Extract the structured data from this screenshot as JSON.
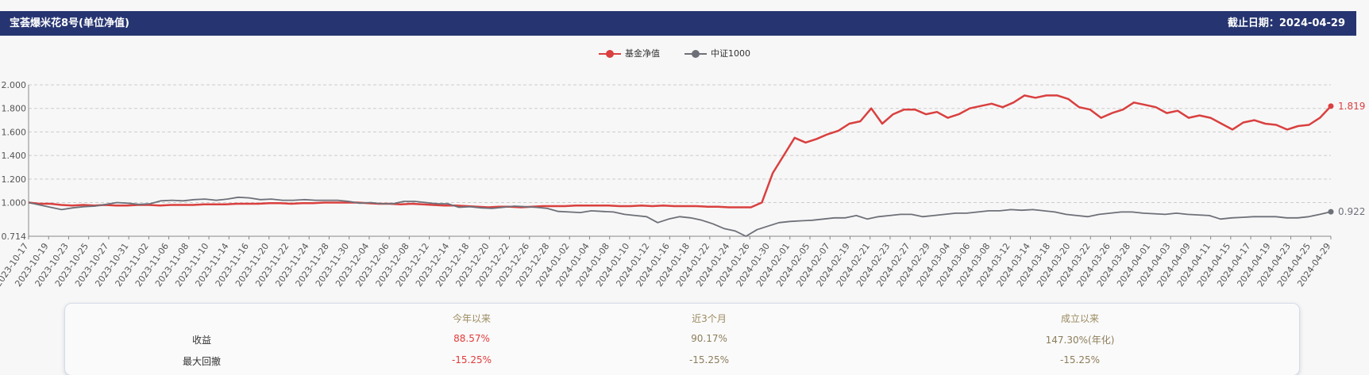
{
  "header": {
    "title": "宝荟爆米花8号(单位净值)",
    "date_label": "截止日期：",
    "date": "2024-04-29"
  },
  "chart_data": {
    "type": "line",
    "legend_position": "top-center",
    "grid": true,
    "ylim": [
      0.714,
      2.0
    ],
    "y_ticks": [
      2.0,
      1.8,
      1.6,
      1.4,
      1.2,
      1.0,
      0.714
    ],
    "y_tick_labels": [
      "2.000",
      "1.800",
      "1.600",
      "1.400",
      "1.200",
      "1.000",
      "0.714"
    ],
    "x_tick_labels": [
      "2023-10-17",
      "2023-10-19",
      "2023-10-23",
      "2023-10-25",
      "2023-10-27",
      "2023-10-31",
      "2023-11-02",
      "2023-11-06",
      "2023-11-08",
      "2023-11-10",
      "2023-11-14",
      "2023-11-16",
      "2023-11-20",
      "2023-11-22",
      "2023-11-24",
      "2023-11-28",
      "2023-11-30",
      "2023-12-04",
      "2023-12-06",
      "2023-12-08",
      "2023-12-12",
      "2023-12-14",
      "2023-12-18",
      "2023-12-20",
      "2023-12-22",
      "2023-12-26",
      "2023-12-28",
      "2024-01-02",
      "2024-01-04",
      "2024-01-08",
      "2024-01-10",
      "2024-01-12",
      "2024-01-16",
      "2024-01-18",
      "2024-01-22",
      "2024-01-24",
      "2024-01-26",
      "2024-01-30",
      "2024-02-01",
      "2024-02-05",
      "2024-02-07",
      "2024-02-19",
      "2024-02-21",
      "2024-02-23",
      "2024-02-27",
      "2024-02-29",
      "2024-03-04",
      "2024-03-06",
      "2024-03-08",
      "2024-03-12",
      "2024-03-14",
      "2024-03-18",
      "2024-03-20",
      "2024-03-22",
      "2024-03-26",
      "2024-03-28",
      "2024-04-01",
      "2024-04-03",
      "2024-04-09",
      "2024-04-11",
      "2024-04-15",
      "2024-04-17",
      "2024-04-19",
      "2024-04-23",
      "2024-04-25",
      "2024-04-29"
    ],
    "series": [
      {
        "name": "基金净值",
        "color": "#d9403f",
        "end_label": "1.819",
        "values": [
          1.0,
          0.99,
          0.99,
          0.98,
          0.975,
          0.98,
          0.975,
          0.98,
          0.975,
          0.975,
          0.98,
          0.98,
          0.975,
          0.98,
          0.98,
          0.98,
          0.985,
          0.985,
          0.985,
          0.99,
          0.99,
          0.99,
          0.995,
          0.995,
          0.99,
          0.995,
          0.995,
          1.0,
          1.0,
          1.0,
          1.0,
          0.995,
          0.99,
          0.99,
          0.985,
          0.99,
          0.985,
          0.98,
          0.975,
          0.975,
          0.97,
          0.965,
          0.96,
          0.965,
          0.965,
          0.96,
          0.965,
          0.97,
          0.97,
          0.97,
          0.975,
          0.975,
          0.975,
          0.975,
          0.97,
          0.97,
          0.975,
          0.97,
          0.975,
          0.97,
          0.97,
          0.97,
          0.965,
          0.965,
          0.96,
          0.96,
          0.96,
          1.0,
          1.25,
          1.4,
          1.55,
          1.51,
          1.54,
          1.58,
          1.61,
          1.67,
          1.69,
          1.8,
          1.67,
          1.75,
          1.79,
          1.79,
          1.75,
          1.77,
          1.72,
          1.75,
          1.8,
          1.82,
          1.84,
          1.81,
          1.85,
          1.91,
          1.89,
          1.91,
          1.91,
          1.88,
          1.81,
          1.79,
          1.72,
          1.76,
          1.79,
          1.85,
          1.83,
          1.81,
          1.76,
          1.78,
          1.72,
          1.74,
          1.72,
          1.67,
          1.62,
          1.68,
          1.7,
          1.67,
          1.66,
          1.62,
          1.65,
          1.66,
          1.72,
          1.819
        ]
      },
      {
        "name": "中证1000",
        "color": "#6e7079",
        "end_label": "0.922",
        "values": [
          1.0,
          0.98,
          0.96,
          0.94,
          0.955,
          0.965,
          0.97,
          0.985,
          1.0,
          0.995,
          0.985,
          0.99,
          1.015,
          1.02,
          1.015,
          1.025,
          1.03,
          1.02,
          1.03,
          1.045,
          1.04,
          1.025,
          1.03,
          1.02,
          1.02,
          1.025,
          1.02,
          1.02,
          1.02,
          1.01,
          0.995,
          1.0,
          0.99,
          0.99,
          1.01,
          1.01,
          1.0,
          0.99,
          0.99,
          0.96,
          0.965,
          0.955,
          0.95,
          0.96,
          0.97,
          0.965,
          0.96,
          0.95,
          0.925,
          0.92,
          0.915,
          0.93,
          0.925,
          0.92,
          0.9,
          0.89,
          0.88,
          0.83,
          0.86,
          0.88,
          0.87,
          0.85,
          0.82,
          0.78,
          0.76,
          0.714,
          0.77,
          0.8,
          0.83,
          0.84,
          0.845,
          0.85,
          0.86,
          0.87,
          0.87,
          0.89,
          0.86,
          0.88,
          0.89,
          0.9,
          0.9,
          0.88,
          0.89,
          0.9,
          0.91,
          0.91,
          0.92,
          0.93,
          0.93,
          0.94,
          0.935,
          0.94,
          0.93,
          0.92,
          0.9,
          0.89,
          0.88,
          0.9,
          0.91,
          0.92,
          0.92,
          0.91,
          0.905,
          0.9,
          0.91,
          0.9,
          0.895,
          0.89,
          0.86,
          0.87,
          0.875,
          0.88,
          0.88,
          0.88,
          0.87,
          0.87,
          0.88,
          0.9,
          0.922
        ]
      }
    ]
  },
  "stats": {
    "columns": [
      "今年以来",
      "近3个月",
      "成立以来"
    ],
    "rows": [
      {
        "label": "收益",
        "values": [
          "88.57%",
          "90.17%",
          "147.30%(年化)"
        ]
      },
      {
        "label": "最大回撤",
        "values": [
          "-15.25%",
          "-15.25%",
          "-15.25%"
        ]
      }
    ]
  }
}
